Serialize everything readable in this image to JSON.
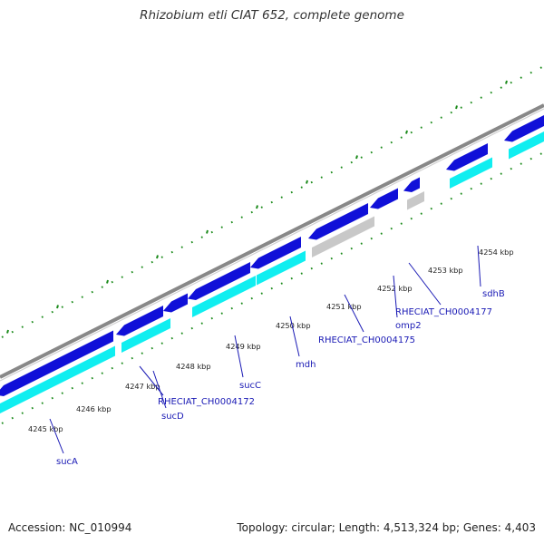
{
  "header": {
    "title": "Rhizobium etli CIAT 652, complete genome"
  },
  "footer": {
    "accession": "Accession: NC_010994",
    "summary": "Topology: circular; Length: 4,513,324 bp; Genes: 4,403"
  },
  "colors": {
    "forward_strand": "#1010d8",
    "reverse_strand": "#10eef0",
    "non_coding": "#c8c8c8",
    "backbone": "#888888",
    "ticks": "#1a8a1a",
    "label": "#1a1ab5"
  },
  "ticks": [
    "4245 kbp",
    "4246 kbp",
    "4247 kbp",
    "4248 kbp",
    "4249 kbp",
    "4250 kbp",
    "4251 kbp",
    "4252 kbp",
    "4253 kbp",
    "4254 kbp"
  ],
  "genes": [
    {
      "name": "sucA"
    },
    {
      "name": "sucD"
    },
    {
      "name": "RHECIAT_CH0004172"
    },
    {
      "name": "sucC"
    },
    {
      "name": "mdh"
    },
    {
      "name": "RHECIAT_CH0004175"
    },
    {
      "name": "omp2"
    },
    {
      "name": "RHECIAT_CH0004177"
    },
    {
      "name": "sdhB"
    }
  ]
}
